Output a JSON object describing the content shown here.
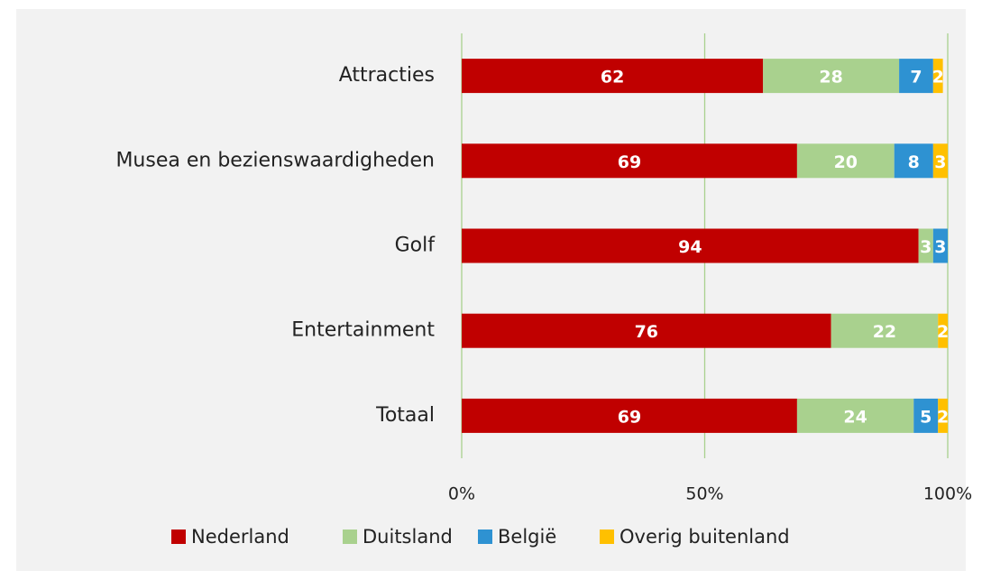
{
  "chart_data": {
    "type": "bar",
    "orientation": "horizontal",
    "stacked": true,
    "categories": [
      "Attracties",
      "Musea en bezienswaardigheden",
      "Golf",
      "Entertainment",
      "Totaal"
    ],
    "series": [
      {
        "name": "Nederland",
        "color": "#c00000",
        "values": [
          62,
          69,
          94,
          76,
          69
        ]
      },
      {
        "name": "Duitsland",
        "color": "#a9d18e",
        "values": [
          28,
          20,
          3,
          22,
          24
        ]
      },
      {
        "name": "België",
        "color": "#2e92d2",
        "values": [
          7,
          8,
          3,
          null,
          5
        ]
      },
      {
        "name": "Overig buitenland",
        "color": "#ffc000",
        "values": [
          2,
          3,
          null,
          2,
          2
        ]
      }
    ],
    "xlim": [
      0,
      100
    ],
    "xticks": [
      {
        "value": 0,
        "label": "0%"
      },
      {
        "value": 50,
        "label": "50%"
      },
      {
        "value": 100,
        "label": "100%"
      }
    ],
    "grid": true,
    "grid_color": "#a9d18e",
    "legend": "bottom"
  }
}
